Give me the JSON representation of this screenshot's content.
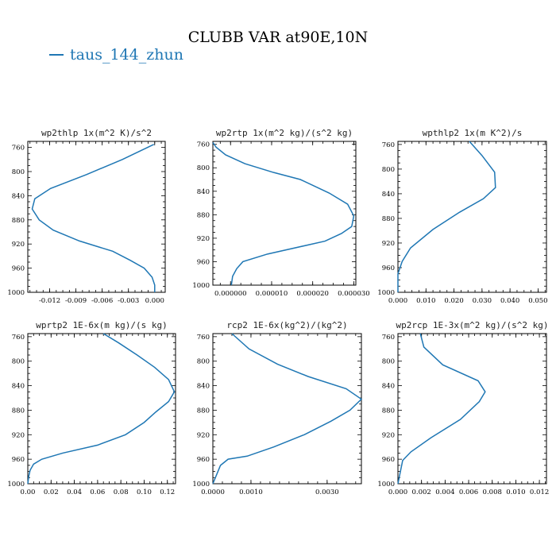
{
  "title": "CLUBB VAR at90E,10N",
  "legend": {
    "label": "taus_144_zhun",
    "color": "#1f77b4"
  },
  "chart_data": [
    {
      "type": "line",
      "title": "wp2thlp  1x(m^2 K)/s^2",
      "ylim": [
        1000,
        750
      ],
      "yticks": [
        760,
        800,
        840,
        880,
        920,
        960,
        1000
      ],
      "xlim": [
        -0.0145,
        0.0012
      ],
      "xticks": [
        -0.012,
        -0.009,
        -0.006,
        -0.003,
        0.0
      ],
      "xtick_labels": [
        "-0.012",
        "-0.009",
        "-0.006",
        "-0.003",
        "0.000"
      ],
      "series": [
        {
          "x": [
            -0.0001,
            -0.0037,
            -0.0078,
            -0.0119,
            -0.0137,
            -0.014,
            -0.0132,
            -0.0116,
            -0.0086,
            -0.0048,
            -0.0028,
            -0.0012,
            -0.0003,
            0.0,
            0.0
          ],
          "y": [
            755,
            780,
            805,
            828,
            845,
            862,
            880,
            897,
            915,
            932,
            947,
            960,
            975,
            988,
            1000
          ]
        }
      ]
    },
    {
      "type": "line",
      "title": "wp2rtp  1x(m^2 kg)/(s^2 kg)",
      "ylim": [
        1000,
        755
      ],
      "yticks": [
        760,
        800,
        840,
        880,
        920,
        960,
        1000
      ],
      "xlim": [
        -4.3e-06,
        3.05e-05
      ],
      "xticks": [
        0.0,
        1e-05,
        2e-05,
        3e-05
      ],
      "xtick_labels": [
        "0.000000",
        "0.000010",
        "0.000020",
        "0.000030"
      ],
      "series": [
        {
          "x": [
            -4.3e-06,
            -3.5e-06,
            -1.2e-06,
            3.5e-06,
            1.05e-05,
            1.7e-05,
            2.4e-05,
            2.85e-05,
            3e-05,
            2.95e-05,
            2.7e-05,
            2.3e-05,
            9e-06,
            3e-06,
            1.5e-06,
            5e-07,
            2e-07
          ],
          "y": [
            757,
            765,
            778,
            793,
            808,
            820,
            843,
            862,
            882,
            900,
            912,
            925,
            947,
            960,
            972,
            985,
            1000
          ]
        }
      ]
    },
    {
      "type": "line",
      "title": "wpthlp2  1x(m K^2)/s",
      "ylim": [
        1000,
        755
      ],
      "yticks": [
        760,
        800,
        840,
        880,
        920,
        960,
        1000
      ],
      "xlim": [
        0.0,
        0.053
      ],
      "xticks": [
        0.0,
        0.01,
        0.02,
        0.03,
        0.04,
        0.05
      ],
      "xtick_labels": [
        "0.000",
        "0.010",
        "0.020",
        "0.030",
        "0.040",
        "0.050"
      ],
      "series": [
        {
          "x": [
            0.0255,
            0.03,
            0.0345,
            0.0348,
            0.0305,
            0.022,
            0.0125,
            0.0045,
            0.0015,
            0.0,
            0.0
          ],
          "y": [
            755,
            778,
            805,
            830,
            848,
            870,
            898,
            928,
            950,
            970,
            1000
          ]
        }
      ]
    },
    {
      "type": "line",
      "title": "wprtp2  1E-6x(m kg)/(s kg)",
      "ylim": [
        1000,
        755
      ],
      "yticks": [
        760,
        800,
        840,
        880,
        920,
        960,
        1000
      ],
      "xlim": [
        0.0,
        0.127
      ],
      "xticks": [
        0.0,
        0.02,
        0.04,
        0.06,
        0.08,
        0.1,
        0.12
      ],
      "xtick_labels": [
        "0.00",
        "0.02",
        "0.04",
        "0.06",
        "0.08",
        "0.10",
        "0.12"
      ],
      "series": [
        {
          "x": [
            0.065,
            0.078,
            0.094,
            0.109,
            0.121,
            0.126,
            0.121,
            0.11,
            0.1,
            0.084,
            0.06,
            0.03,
            0.012,
            0.005,
            0.002,
            0.0008,
            0.0
          ],
          "y": [
            755,
            770,
            790,
            810,
            830,
            850,
            866,
            883,
            900,
            920,
            937,
            950,
            960,
            968,
            978,
            988,
            1000
          ]
        }
      ]
    },
    {
      "type": "line",
      "title": "rcp2  1E-6x(kg^2)/(kg^2)",
      "ylim": [
        1000,
        755
      ],
      "yticks": [
        760,
        800,
        840,
        880,
        920,
        960,
        1000
      ],
      "xlim": [
        0.0,
        0.0039
      ],
      "xticks": [
        0.0,
        0.001,
        0.003
      ],
      "xtick_labels": [
        "0.0000",
        "0.0010",
        "0.0030"
      ],
      "series": [
        {
          "x": [
            0.0005,
            0.00095,
            0.0017,
            0.0025,
            0.0035,
            0.0039,
            0.0036,
            0.0031,
            0.0024,
            0.0016,
            0.0009,
            0.0004,
            0.0002,
            0.0001,
            0.0
          ],
          "y": [
            755,
            780,
            805,
            825,
            845,
            862,
            880,
            898,
            920,
            940,
            955,
            960,
            970,
            985,
            1000
          ]
        }
      ]
    },
    {
      "type": "line",
      "title": "wp2rcp  1E-3x(m^2 kg)/(s^2 kg)",
      "ylim": [
        1000,
        755
      ],
      "yticks": [
        760,
        800,
        840,
        880,
        920,
        960,
        1000
      ],
      "xlim": [
        0.0,
        0.0126
      ],
      "xticks": [
        0.0,
        0.002,
        0.004,
        0.006,
        0.008,
        0.01,
        0.012
      ],
      "xtick_labels": [
        "0.000",
        "0.002",
        "0.004",
        "0.006",
        "0.008",
        "0.010",
        "0.012"
      ],
      "series": [
        {
          "x": [
            0.0019,
            0.0022,
            0.0038,
            0.0068,
            0.0074,
            0.0069,
            0.0053,
            0.0028,
            0.0011,
            0.0004,
            0.0
          ],
          "y": [
            755,
            777,
            806,
            832,
            850,
            866,
            895,
            925,
            948,
            962,
            1000
          ]
        }
      ]
    }
  ]
}
